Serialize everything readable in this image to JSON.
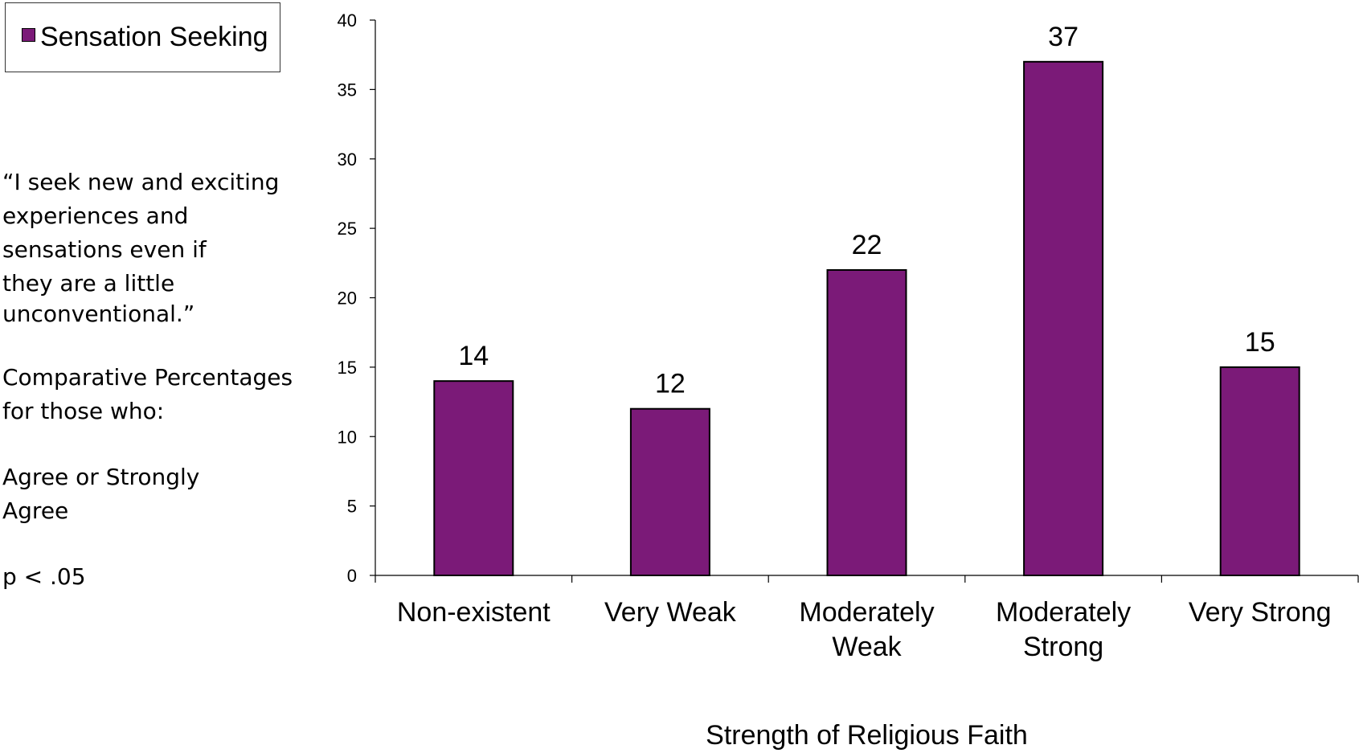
{
  "legend": {
    "label": "Sensation Seeking",
    "color": "#7b1a78"
  },
  "notes": {
    "quote_lines": [
      "“I seek new and exciting",
      "experiences and",
      "sensations even if",
      "they are a little",
      "unconventional.”"
    ],
    "comparison_lines": [
      "Comparative Percentages",
      "for those who:"
    ],
    "response_lines": [
      "Agree or Strongly",
      "Agree"
    ],
    "significance": "p < .05"
  },
  "chart_data": {
    "type": "bar",
    "categories": [
      [
        "Non-existent"
      ],
      [
        "Very Weak"
      ],
      [
        "Moderately",
        "Weak"
      ],
      [
        "Moderately",
        "Strong"
      ],
      [
        "Very Strong"
      ]
    ],
    "series": [
      {
        "name": "Sensation Seeking",
        "values": [
          14,
          12,
          22,
          37,
          15
        ],
        "color": "#7b1a78"
      }
    ],
    "xlabel": "Strength of Religious Faith",
    "ylabel": "",
    "ylim": [
      0,
      40
    ],
    "yticks": [
      0,
      5,
      10,
      15,
      20,
      25,
      30,
      35,
      40
    ],
    "data_labels": true,
    "grid": false,
    "legend_position": "top-left"
  }
}
